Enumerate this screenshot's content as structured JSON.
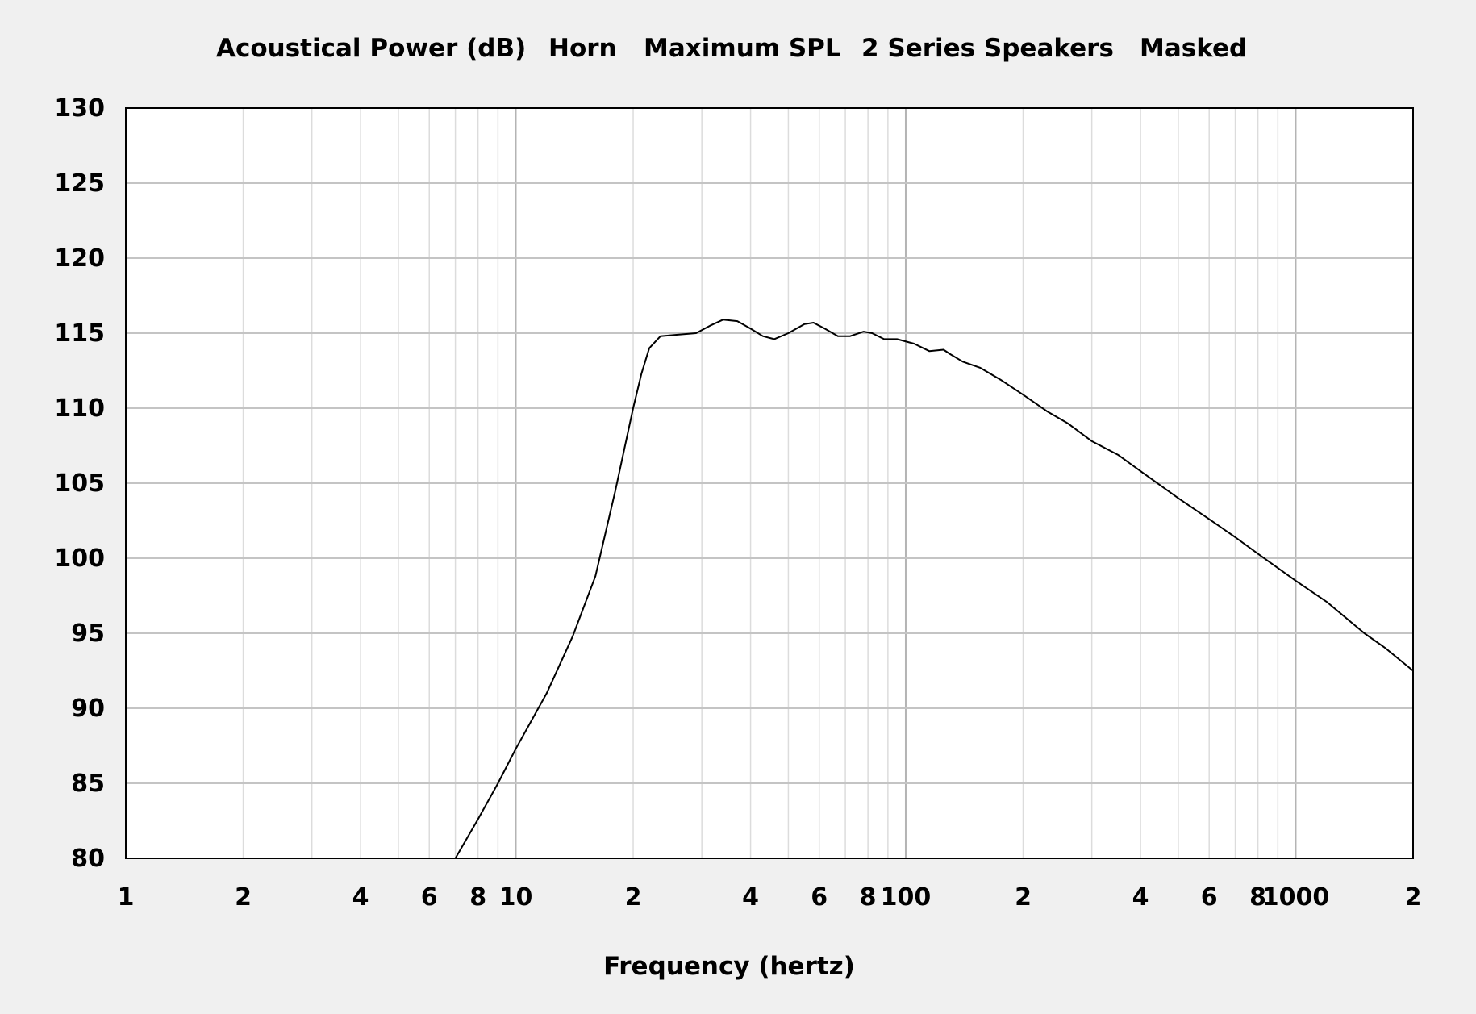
{
  "chart_data": {
    "type": "line",
    "title_parts": [
      "Acoustical Power (dB)",
      "Horn",
      "Maximum SPL",
      "2 Series Speakers",
      "Masked"
    ],
    "xlabel": "Frequency (hertz)",
    "ylabel": "",
    "x_scale": "log",
    "xlim": [
      1,
      2000
    ],
    "ylim": [
      80,
      130
    ],
    "y_ticks": [
      80,
      85,
      90,
      95,
      100,
      105,
      110,
      115,
      120,
      125,
      130
    ],
    "x_ticks": [
      {
        "value": 1,
        "label": "1"
      },
      {
        "value": 2,
        "label": "2"
      },
      {
        "value": 4,
        "label": "4"
      },
      {
        "value": 6,
        "label": "6"
      },
      {
        "value": 8,
        "label": "8"
      },
      {
        "value": 10,
        "label": "10"
      },
      {
        "value": 20,
        "label": "2"
      },
      {
        "value": 40,
        "label": "4"
      },
      {
        "value": 60,
        "label": "6"
      },
      {
        "value": 80,
        "label": "8"
      },
      {
        "value": 100,
        "label": "100"
      },
      {
        "value": 200,
        "label": "2"
      },
      {
        "value": 400,
        "label": "4"
      },
      {
        "value": 600,
        "label": "6"
      },
      {
        "value": 800,
        "label": "8"
      },
      {
        "value": 1000,
        "label": "1000"
      },
      {
        "value": 2000,
        "label": "2"
      }
    ],
    "grid": true,
    "series": [
      {
        "color": "#000000",
        "points": [
          [
            7.0,
            80.0
          ],
          [
            8.0,
            82.6
          ],
          [
            9.0,
            85.0
          ],
          [
            10.0,
            87.3
          ],
          [
            12.0,
            91.0
          ],
          [
            14.0,
            94.8
          ],
          [
            16.0,
            98.8
          ],
          [
            18.0,
            104.5
          ],
          [
            20.0,
            110.0
          ],
          [
            21.0,
            112.3
          ],
          [
            22.0,
            114.0
          ],
          [
            23.5,
            114.8
          ],
          [
            26.0,
            114.9
          ],
          [
            29.0,
            115.0
          ],
          [
            31.5,
            115.5
          ],
          [
            34.0,
            115.9
          ],
          [
            37.0,
            115.8
          ],
          [
            40.0,
            115.3
          ],
          [
            43.0,
            114.8
          ],
          [
            46.0,
            114.6
          ],
          [
            50.0,
            115.0
          ],
          [
            55.0,
            115.6
          ],
          [
            58.0,
            115.7
          ],
          [
            62.0,
            115.3
          ],
          [
            67.0,
            114.8
          ],
          [
            72.0,
            114.8
          ],
          [
            78.0,
            115.1
          ],
          [
            82.0,
            115.0
          ],
          [
            88.0,
            114.6
          ],
          [
            95.0,
            114.6
          ],
          [
            105.0,
            114.3
          ],
          [
            115.0,
            113.8
          ],
          [
            125.0,
            113.9
          ],
          [
            130.0,
            113.6
          ],
          [
            140.0,
            113.1
          ],
          [
            155.0,
            112.7
          ],
          [
            175.0,
            111.9
          ],
          [
            200.0,
            110.9
          ],
          [
            230.0,
            109.8
          ],
          [
            260.0,
            109.0
          ],
          [
            300.0,
            107.8
          ],
          [
            350.0,
            106.9
          ],
          [
            400.0,
            105.8
          ],
          [
            500.0,
            104.0
          ],
          [
            600.0,
            102.6
          ],
          [
            700.0,
            101.4
          ],
          [
            800.0,
            100.3
          ],
          [
            1000.0,
            98.5
          ],
          [
            1200.0,
            97.1
          ],
          [
            1500.0,
            95.0
          ],
          [
            1700.0,
            94.0
          ],
          [
            2000.0,
            92.5
          ]
        ]
      }
    ]
  }
}
